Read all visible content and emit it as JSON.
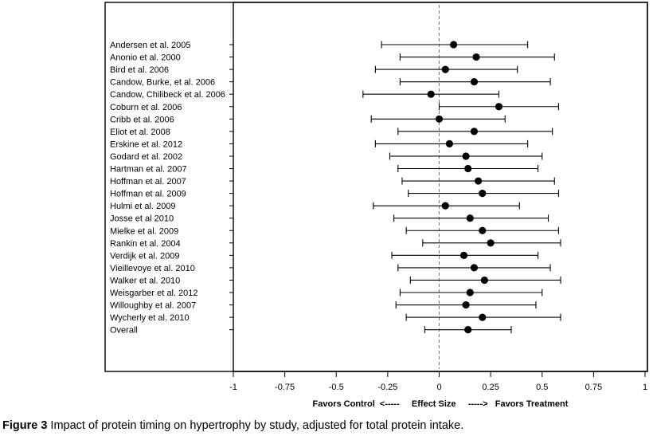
{
  "chart_data": {
    "type": "forest",
    "categories": [
      "Andersen et al. 2005",
      "Anonio et al. 2000",
      "Bird et al. 2006",
      "Candow, Burke, et al. 2006",
      "Candow, Chilibeck et al. 2006",
      "Coburn et al. 2006",
      "Cribb et al. 2006",
      "Eliot et al. 2008",
      "Erskine et al. 2012",
      "Godard et al.  2002",
      "Hartman et al. 2007",
      "Hoffman et al. 2007",
      "Hoffman et al. 2009",
      "Hulmi et al. 2009",
      "Josse et al 2010",
      "Mielke et al. 2009",
      "Rankin et al. 2004",
      "Verdijk et al. 2009",
      "Vieillevoye et al. 2010",
      "Walker et al. 2010",
      "Weisgarber et al. 2012",
      "Willoughby et al. 2007",
      "Wycherly et al. 2010",
      "Overall"
    ],
    "estimate": [
      0.07,
      0.18,
      0.03,
      0.17,
      -0.04,
      0.29,
      0.0,
      0.17,
      0.05,
      0.13,
      0.14,
      0.19,
      0.21,
      0.03,
      0.15,
      0.21,
      0.25,
      0.12,
      0.17,
      0.22,
      0.15,
      0.13,
      0.21,
      0.14
    ],
    "lower": [
      -0.28,
      -0.19,
      -0.31,
      -0.19,
      -0.37,
      0.0,
      -0.33,
      -0.2,
      -0.31,
      -0.24,
      -0.2,
      -0.18,
      -0.15,
      -0.32,
      -0.22,
      -0.16,
      -0.08,
      -0.23,
      -0.2,
      -0.14,
      -0.19,
      -0.21,
      -0.16,
      -0.07
    ],
    "upper": [
      0.43,
      0.56,
      0.38,
      0.54,
      0.29,
      0.58,
      0.32,
      0.55,
      0.43,
      0.5,
      0.48,
      0.56,
      0.58,
      0.39,
      0.53,
      0.58,
      0.59,
      0.48,
      0.54,
      0.59,
      0.5,
      0.47,
      0.59,
      0.35
    ],
    "xlim": [
      -1,
      1
    ],
    "xticks": [
      "-1",
      "-0.75",
      "-0.5",
      "-0.25",
      "0",
      "0.25",
      "0.5",
      "0.75",
      "1"
    ],
    "xlabel": "Favors Control  <-----     Effect Size     ----->   Favors Treatment",
    "reference_line": 0
  },
  "caption": {
    "label": "Figure 3",
    "text": " Impact of protein timing on hypertrophy by study, adjusted for total protein intake."
  }
}
